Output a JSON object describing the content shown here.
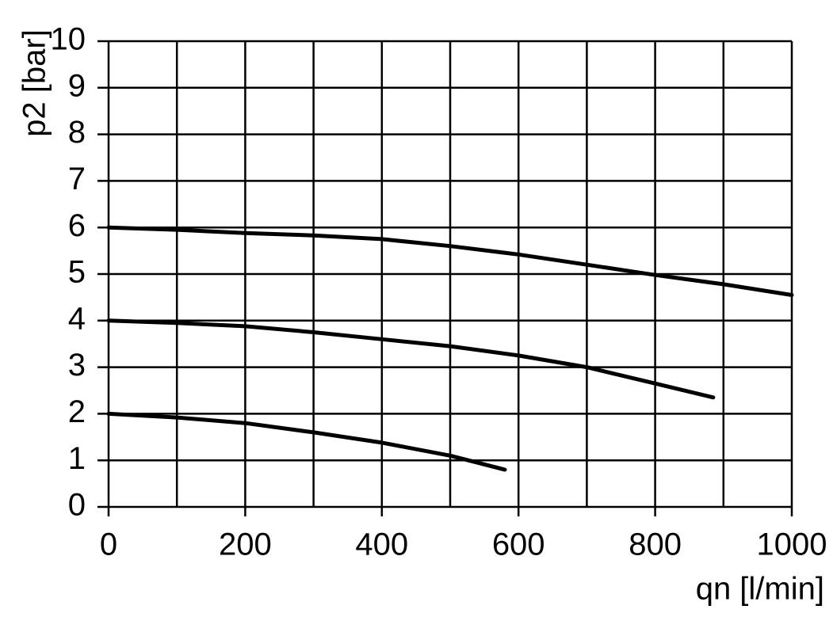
{
  "chart_data": {
    "type": "line",
    "y_label": "p2 [bar]",
    "x_label": "qn [l/min]",
    "xlim": [
      0,
      1000
    ],
    "ylim": [
      0,
      10
    ],
    "xticks": [
      0,
      200,
      400,
      600,
      800,
      1000
    ],
    "x_minor_grid": [
      100,
      300,
      500,
      700,
      900
    ],
    "yticks": [
      0,
      1,
      2,
      3,
      4,
      5,
      6,
      7,
      8,
      9,
      10
    ],
    "grid": true,
    "series": [
      {
        "color": "#000000",
        "x": [
          0,
          100,
          200,
          300,
          400,
          500,
          600,
          700,
          800,
          900,
          1000
        ],
        "values": [
          6,
          5.95,
          5.88,
          5.83,
          5.75,
          5.6,
          5.42,
          5.2,
          4.98,
          4.78,
          4.55
        ]
      },
      {
        "color": "#000000",
        "x": [
          0,
          100,
          200,
          300,
          400,
          500,
          600,
          700,
          800,
          885
        ],
        "values": [
          4,
          3.95,
          3.88,
          3.75,
          3.6,
          3.45,
          3.25,
          3.0,
          2.65,
          2.35
        ]
      },
      {
        "color": "#000000",
        "x": [
          0,
          100,
          200,
          300,
          400,
          500,
          580
        ],
        "values": [
          2,
          1.92,
          1.8,
          1.6,
          1.38,
          1.1,
          0.8
        ]
      }
    ]
  }
}
